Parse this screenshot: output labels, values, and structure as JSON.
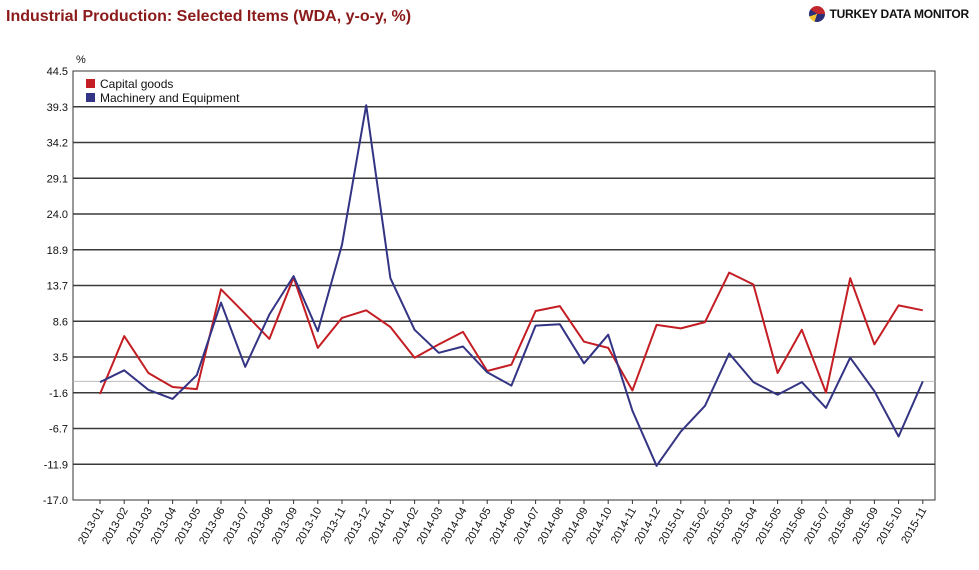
{
  "header": {
    "title": "Industrial Production: Selected Items (WDA, y-o-y, %)",
    "brand": "TURKEY DATA MONITOR"
  },
  "colors": {
    "title": "#8b1a1a",
    "capital_goods": "#c41e24",
    "machinery": "#343484",
    "grid": "#3a3a3a",
    "zero_line": "#bbbbbb"
  },
  "chart_data": {
    "type": "line",
    "title": "Industrial Production: Selected Items (WDA, y-o-y, %)",
    "ylabel": "%",
    "xlabel": "",
    "ylim": [
      -17.0,
      44.5
    ],
    "yticks": [
      "44.5",
      "39.3",
      "34.2",
      "29.1",
      "24.0",
      "18.9",
      "13.7",
      "8.6",
      "3.5",
      "-1.6",
      "-6.7",
      "-11.9",
      "-17.0"
    ],
    "grid": true,
    "legend_position": "top-left",
    "categories": [
      "2013-01",
      "2013-02",
      "2013-03",
      "2013-04",
      "2013-05",
      "2013-06",
      "2013-07",
      "2013-08",
      "2013-09",
      "2013-10",
      "2013-11",
      "2013-12",
      "2014-01",
      "2014-02",
      "2014-03",
      "2014-04",
      "2014-05",
      "2014-06",
      "2014-07",
      "2014-08",
      "2014-09",
      "2014-10",
      "2014-11",
      "2014-12",
      "2015-01",
      "2015-02",
      "2015-03",
      "2015-04",
      "2015-05",
      "2015-06",
      "2015-07",
      "2015-08",
      "2015-09",
      "2015-10",
      "2015-11"
    ],
    "series": [
      {
        "name": "Capital goods",
        "color": "#c41e24",
        "values": [
          -1.8,
          6.5,
          1.2,
          -0.8,
          -1.1,
          13.2,
          9.7,
          6.1,
          14.9,
          4.8,
          9.1,
          10.2,
          7.8,
          3.4,
          5.3,
          7.1,
          1.5,
          2.4,
          10.1,
          10.8,
          5.7,
          4.8,
          -1.3,
          8.1,
          7.6,
          8.5,
          15.6,
          13.9,
          1.2,
          7.4,
          -1.6,
          14.8,
          5.3,
          10.9,
          10.2
        ]
      },
      {
        "name": "Machinery and Equipment",
        "color": "#343484",
        "values": [
          -0.1,
          1.6,
          -1.2,
          -2.5,
          0.9,
          11.3,
          2.1,
          9.6,
          15.1,
          7.2,
          19.6,
          39.6,
          14.8,
          7.4,
          4.1,
          5.0,
          1.3,
          -0.6,
          8.0,
          8.2,
          2.6,
          6.7,
          -4.2,
          -12.1,
          -7.2,
          -3.5,
          4.0,
          -0.1,
          -1.9,
          -0.1,
          -3.8,
          3.4,
          -1.4,
          -7.9,
          0.0
        ]
      }
    ]
  }
}
